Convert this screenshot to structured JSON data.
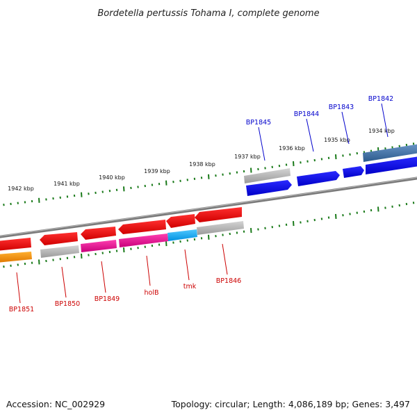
{
  "title": "Bordetella pertussis Tohama I, complete genome",
  "footer": {
    "accession": "Accession: NC_002929",
    "summary": "Topology: circular; Length: 4,086,189 bp; Genes: 3,497"
  },
  "tick_labels": [
    "1934 kbp",
    "1935 kbp",
    "1936 kbp",
    "1937 kbp",
    "1938 kbp",
    "1939 kbp",
    "1940 kbp",
    "1941 kbp",
    "1942 kbp"
  ],
  "genes_plus": [
    {
      "name": "BP1842",
      "color": "#3b6ea8"
    },
    {
      "name": "BP1843",
      "color": "#0000ee"
    },
    {
      "name": "BP1844",
      "color": "#0000ee"
    },
    {
      "name": "BP1845",
      "color": "#0000ee"
    }
  ],
  "genes_minus": [
    {
      "name": "BP1846",
      "color": "#ee0000"
    },
    {
      "name": "tmk",
      "color": "#ee0000"
    },
    {
      "name": "holB",
      "color": "#ee0000"
    },
    {
      "name": "BP1849",
      "color": "#ee0000"
    },
    {
      "name": "BP1850",
      "color": "#ee0000"
    },
    {
      "name": "BP1851",
      "color": "#ee0000"
    }
  ],
  "colors": {
    "plus_strand": "#0000ee",
    "minus_strand": "#ee0000",
    "backbone": "#777777",
    "ticks": "#1a7a1a",
    "plus_label": "#0000cc",
    "minus_label": "#cc0000",
    "cog_gray": "#b0b0b0",
    "cog_magenta": "#e8189a",
    "cog_cyan": "#1ab0ff",
    "cog_orange": "#ff9900",
    "cog_steelblue": "#3b6ea8"
  }
}
